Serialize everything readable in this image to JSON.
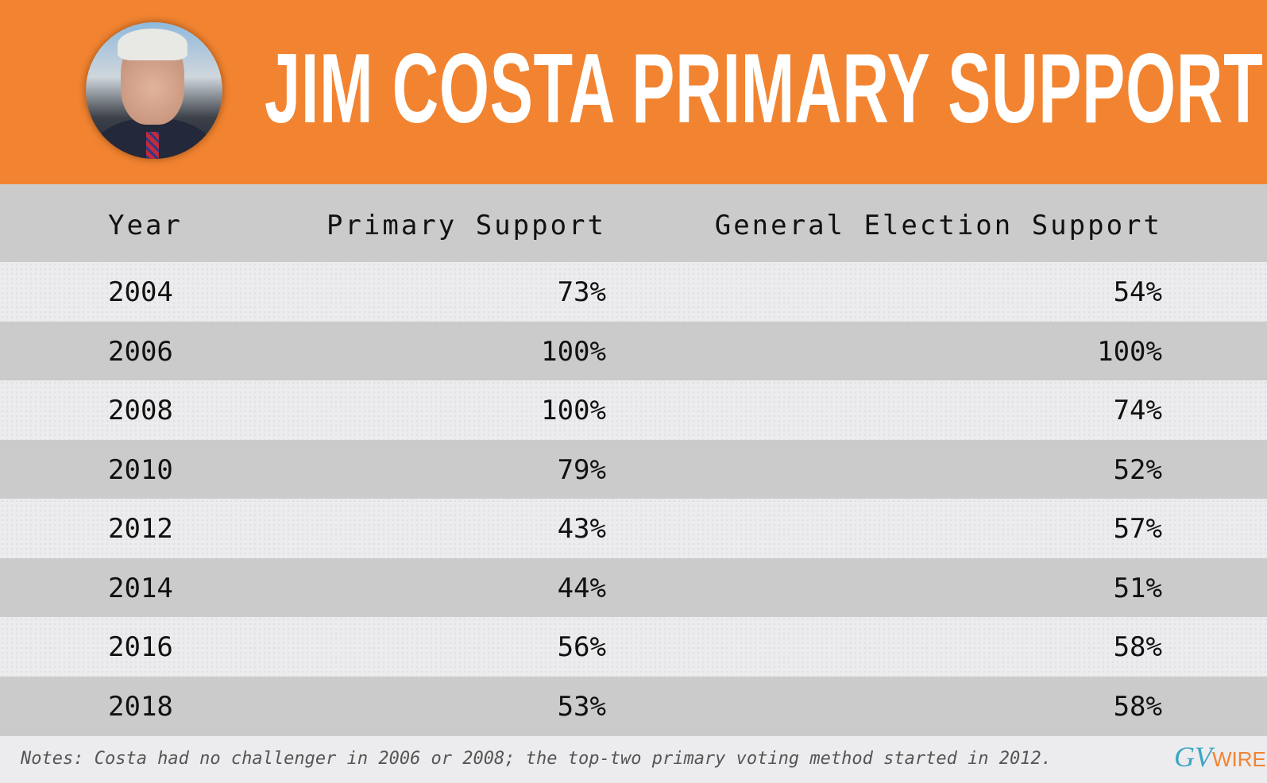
{
  "header": {
    "title": "JIM COSTA PRIMARY SUPPORT"
  },
  "table": {
    "columns": [
      "Year",
      "Primary Support",
      "General Election Support"
    ],
    "rows": [
      {
        "year": "2004",
        "primary": "73%",
        "general": "54%"
      },
      {
        "year": "2006",
        "primary": "100%",
        "general": "100%"
      },
      {
        "year": "2008",
        "primary": "100%",
        "general": "74%"
      },
      {
        "year": "2010",
        "primary": "79%",
        "general": "52%"
      },
      {
        "year": "2012",
        "primary": "43%",
        "general": "57%"
      },
      {
        "year": "2014",
        "primary": "44%",
        "general": "51%"
      },
      {
        "year": "2016",
        "primary": "56%",
        "general": "58%"
      },
      {
        "year": "2018",
        "primary": "53%",
        "general": "58%"
      }
    ]
  },
  "notes": "Notes: Costa had no challenger in 2006 or 2008; the top-two primary voting method started in 2012.",
  "logo": {
    "prefix": "GV",
    "suffix": "WIRE"
  },
  "colors": {
    "accent": "#f28431",
    "row_dark": "#cbcbcb",
    "row_light": "#ececee",
    "logo_blue": "#3aa6c4"
  }
}
